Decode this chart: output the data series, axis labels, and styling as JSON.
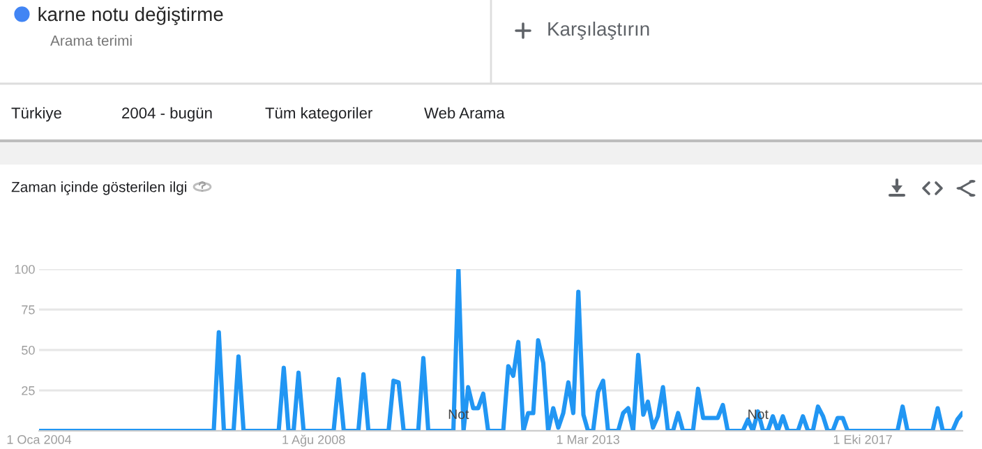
{
  "chart_data": {
    "type": "line",
    "title": "Zaman içinde gösterilen ilgi",
    "annotations": [
      "Arama terimi",
      "Karşılaştırın",
      "Türkiye",
      "2004 - bugün",
      "Tüm kategoriler",
      "Web Arama",
      {
        "text": "Not",
        "x": "2011-01",
        "y": 0
      },
      {
        "text": "Not",
        "x": "2016-01",
        "y": 0
      }
    ],
    "legend": "top left",
    "grid": "y",
    "xlim": [
      "2004-01",
      "2019-06"
    ],
    "xticks": [
      {
        "value": "2004-01",
        "label": "1 Oca 2004"
      },
      {
        "value": "2008-08",
        "label": "1 Ağu 2008"
      },
      {
        "value": "2013-03",
        "label": "1 Mar 2013"
      },
      {
        "value": "2017-10",
        "label": "1 Eki 2017"
      }
    ],
    "ylim": [
      0,
      100
    ],
    "yticks": [
      {
        "value": 0,
        "label": null
      },
      25,
      50,
      75,
      100
    ],
    "series": [
      {
        "name": "karne notu değiştirme",
        "color": "#2196f3",
        "x": [
          "2004-01",
          "2006-12",
          "2007-01",
          "2007-02",
          "2007-04",
          "2007-05",
          "2007-06",
          "2008-01",
          "2008-02",
          "2008-03",
          "2008-04",
          "2008-05",
          "2008-06",
          "2008-12",
          "2009-01",
          "2009-02",
          "2009-05",
          "2009-06",
          "2009-07",
          "2009-11",
          "2009-12",
          "2010-01",
          "2010-02",
          "2010-05",
          "2010-06",
          "2010-07",
          "2010-12",
          "2011-01",
          "2011-02",
          "2011-03",
          "2011-04",
          "2011-05",
          "2011-06",
          "2011-07",
          "2011-10",
          "2011-11",
          "2011-12",
          "2012-01",
          "2012-02",
          "2012-03",
          "2012-04",
          "2012-05",
          "2012-06",
          "2012-07",
          "2012-08",
          "2012-09",
          "2012-10",
          "2012-11",
          "2012-12",
          "2013-01",
          "2013-02",
          "2013-03",
          "2013-04",
          "2013-05",
          "2013-06",
          "2013-07",
          "2013-09",
          "2013-10",
          "2013-11",
          "2013-12",
          "2014-01",
          "2014-02",
          "2014-03",
          "2014-04",
          "2014-05",
          "2014-06",
          "2014-07",
          "2014-08",
          "2014-09",
          "2014-10",
          "2014-12",
          "2015-01",
          "2015-02",
          "2015-05",
          "2015-06",
          "2015-07",
          "2015-10",
          "2015-11",
          "2015-12",
          "2016-01",
          "2016-02",
          "2016-03",
          "2016-04",
          "2016-05",
          "2016-06",
          "2016-07",
          "2016-09",
          "2016-10",
          "2016-11",
          "2016-12",
          "2017-01",
          "2017-02",
          "2017-03",
          "2017-04",
          "2017-05",
          "2017-06",
          "2017-07",
          "2018-05",
          "2018-06",
          "2018-07",
          "2018-12",
          "2019-01",
          "2019-02",
          "2019-04",
          "2019-05",
          "2019-06"
        ],
        "values": [
          0,
          0,
          61,
          0,
          0,
          46,
          0,
          0,
          39,
          0,
          0,
          36,
          0,
          0,
          32,
          0,
          0,
          35,
          0,
          0,
          31,
          30,
          0,
          0,
          45,
          0,
          0,
          100,
          0,
          27,
          14,
          14,
          23,
          0,
          0,
          40,
          34,
          55,
          0,
          11,
          11,
          56,
          42,
          0,
          14,
          2,
          11,
          30,
          11,
          86,
          10,
          0,
          0,
          24,
          31,
          0,
          0,
          11,
          14,
          0,
          47,
          10,
          18,
          2,
          9,
          27,
          0,
          0,
          11,
          0,
          0,
          26,
          8,
          8,
          16,
          0,
          0,
          7,
          0,
          12,
          0,
          0,
          9,
          0,
          9,
          0,
          0,
          9,
          0,
          0,
          15,
          9,
          0,
          0,
          8,
          8,
          0,
          0,
          15,
          0,
          0,
          14,
          0,
          0,
          7,
          11
        ]
      }
    ]
  }
}
